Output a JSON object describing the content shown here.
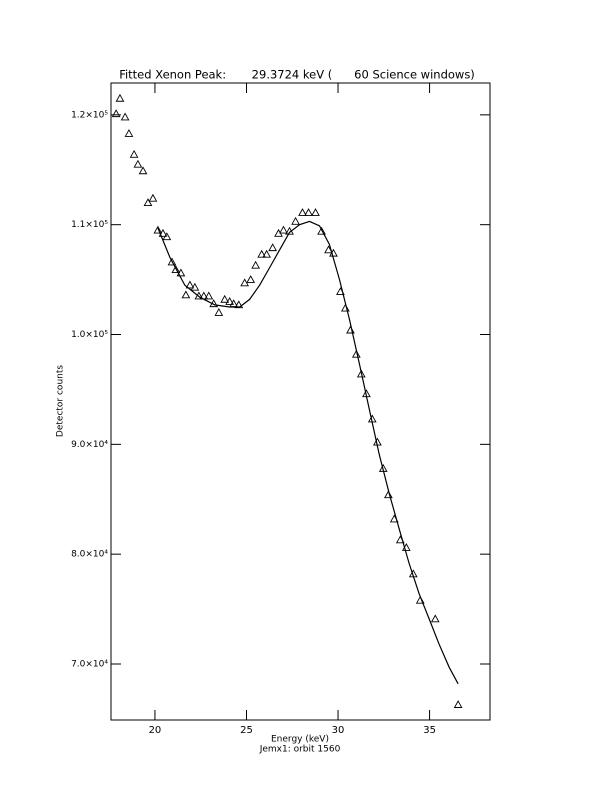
{
  "chart_data": {
    "type": "scatter",
    "title": "Fitted Xenon Peak:       29.3724 keV (      60 Science windows)",
    "x_label": "Energy (keV)",
    "x_sublabel": "Jemx1: orbit 1560",
    "y_label": "Detector counts",
    "xlim": [
      17.6,
      38.3
    ],
    "ylim": [
      64900,
      122900
    ],
    "xticks": [
      20,
      25,
      30,
      35
    ],
    "yticks": [
      {
        "value": 70000,
        "label": "7.0×10⁴"
      },
      {
        "value": 80000,
        "label": "8.0×10⁴"
      },
      {
        "value": 90000,
        "label": "9.0×10⁴"
      },
      {
        "value": 100000,
        "label": "1.0×10⁵"
      },
      {
        "value": 110000,
        "label": "1.1×10⁵"
      },
      {
        "value": 120000,
        "label": "1.2×10⁵"
      }
    ],
    "color": "#000000",
    "points": {
      "x": [
        17.88,
        18.09,
        18.37,
        18.58,
        18.86,
        19.07,
        19.35,
        19.62,
        19.89,
        20.16,
        20.44,
        20.65,
        20.93,
        21.14,
        21.42,
        21.69,
        21.91,
        22.18,
        22.4,
        22.67,
        22.94,
        23.21,
        23.49,
        23.81,
        24.08,
        24.3,
        24.58,
        24.9,
        25.23,
        25.5,
        25.83,
        26.1,
        26.43,
        26.75,
        27.02,
        27.35,
        27.68,
        28.06,
        28.39,
        28.77,
        29.1,
        29.48,
        29.75,
        30.13,
        30.4,
        30.68,
        31.0,
        31.27,
        31.55,
        31.87,
        32.15,
        32.47,
        32.75,
        33.07,
        33.4,
        33.73,
        34.11,
        34.49,
        35.31,
        36.56
      ],
      "y": [
        120100,
        121500,
        119800,
        118300,
        116400,
        115500,
        114900,
        112000,
        112400,
        109500,
        109200,
        108900,
        106600,
        105900,
        105600,
        103600,
        104500,
        104300,
        103500,
        103500,
        103500,
        102800,
        102000,
        103200,
        103000,
        102800,
        102700,
        104700,
        105000,
        106300,
        107300,
        107300,
        107900,
        109200,
        109500,
        109400,
        110300,
        111100,
        111100,
        111100,
        109400,
        107700,
        107400,
        103900,
        102400,
        100400,
        98200,
        96400,
        94600,
        92300,
        90200,
        87800,
        85400,
        83200,
        81300,
        80600,
        78200,
        75800,
        74100,
        66300
      ]
    },
    "fit": {
      "x": [
        20.16,
        20.82,
        21.63,
        22.45,
        23.27,
        24.08,
        24.63,
        25.17,
        25.72,
        26.27,
        26.81,
        27.35,
        27.9,
        28.44,
        28.99,
        29.53,
        30.08,
        30.62,
        31.17,
        31.71,
        32.25,
        32.8,
        33.34,
        33.89,
        34.43,
        34.98,
        35.52,
        36.07,
        36.56
      ],
      "y": [
        109700,
        107000,
        104500,
        103400,
        102700,
        102500,
        102500,
        103200,
        104500,
        106100,
        107700,
        109300,
        110000,
        110300,
        109900,
        108200,
        105000,
        101400,
        97300,
        93200,
        89100,
        85500,
        82300,
        79100,
        76400,
        74100,
        71800,
        69700,
        68200
      ]
    }
  }
}
